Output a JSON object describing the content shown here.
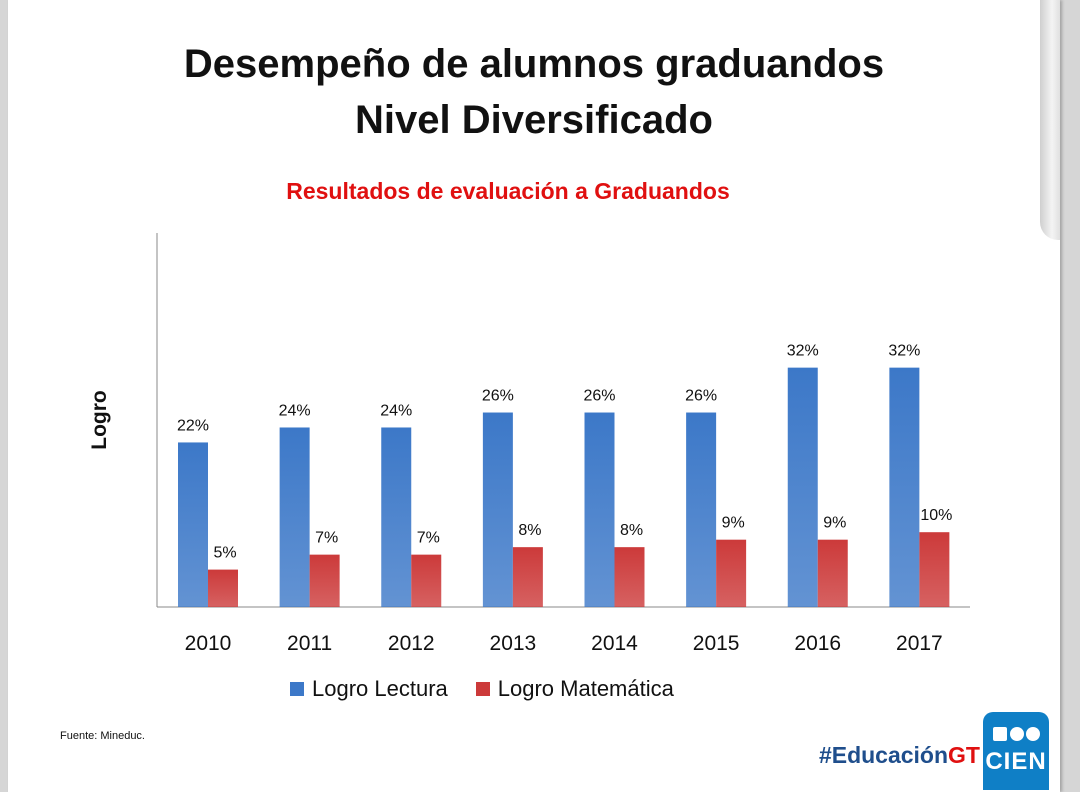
{
  "title_line1": "Desempeño de alumnos graduandos",
  "title_line2": "Nivel Diversificado",
  "source": "Fuente: Mineduc.",
  "hashtag_part1": "#Educación",
  "hashtag_part2": "GT",
  "logo_text": "CIEN",
  "colors": {
    "lectura": "#3c78c8",
    "matematica": "#cc3a3a",
    "subtitle": "#e01010"
  },
  "chart_data": {
    "type": "bar",
    "title": "Resultados de evaluación a Graduandos",
    "xlabel": "",
    "ylabel": "Logro",
    "ylim": [
      0,
      0.5
    ],
    "grid": false,
    "legend": "bottom",
    "categories": [
      "2010",
      "2011",
      "2012",
      "2013",
      "2014",
      "2015",
      "2016",
      "2017"
    ],
    "series": [
      {
        "name": "Logro Lectura",
        "values": [
          0.22,
          0.24,
          0.24,
          0.26,
          0.26,
          0.26,
          0.32,
          0.32
        ],
        "labels": [
          "22%",
          "24%",
          "24%",
          "26%",
          "26%",
          "26%",
          "32%",
          "32%"
        ]
      },
      {
        "name": "Logro Matemática",
        "values": [
          0.05,
          0.07,
          0.07,
          0.08,
          0.08,
          0.09,
          0.09,
          0.1
        ],
        "labels": [
          "5%",
          "7%",
          "7%",
          "8%",
          "8%",
          "9%",
          "9%",
          "10%"
        ]
      }
    ]
  }
}
